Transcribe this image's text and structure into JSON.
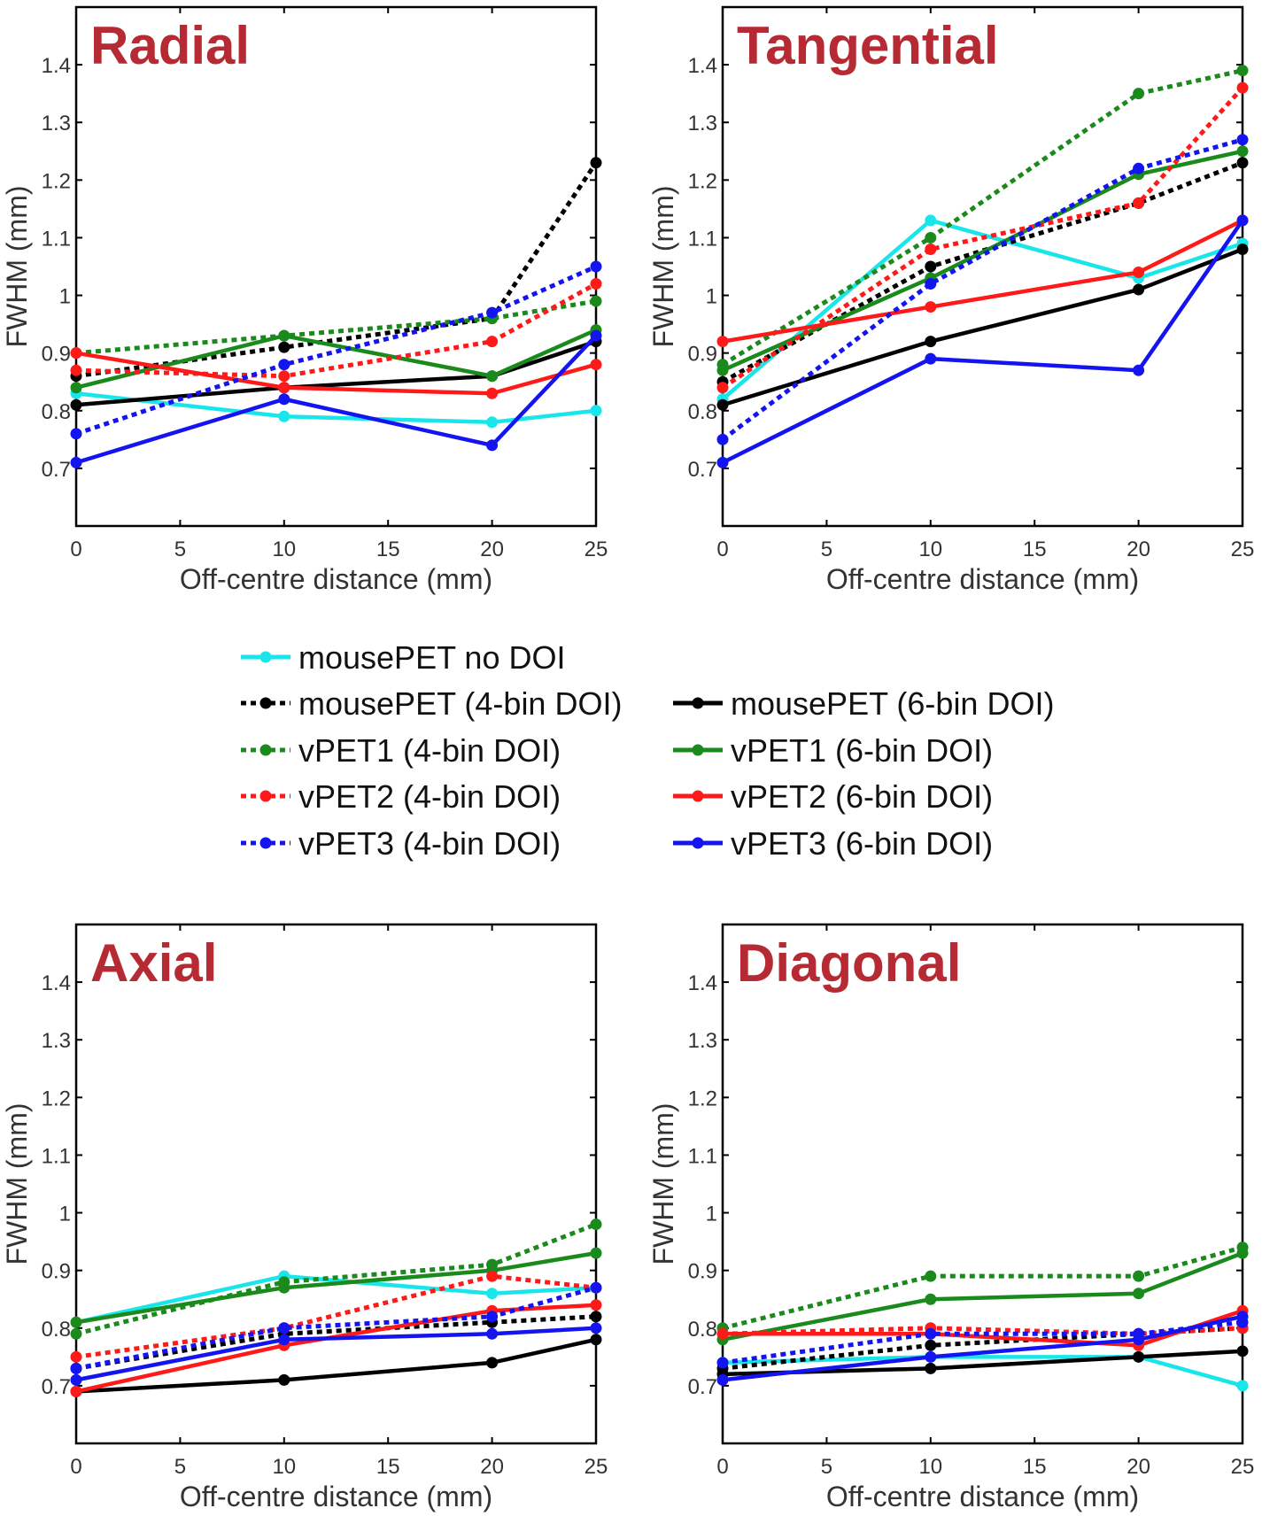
{
  "chart_data": [
    {
      "type": "line",
      "title": "Radial",
      "xlabel": "Off-centre distance (mm)",
      "ylabel": "FWHM (mm)",
      "x": [
        0,
        10,
        20,
        25
      ],
      "xticks": [
        "0",
        "5",
        "10",
        "15",
        "20",
        "25"
      ],
      "yticks": [
        "0.7",
        "0.8",
        "0.9",
        "1",
        "1.1",
        "1.2",
        "1.3",
        "1.4"
      ],
      "xlim": [
        0,
        25
      ],
      "ylim": [
        0.6,
        1.5
      ],
      "series": [
        {
          "name": "mousePET no DOI",
          "values": [
            0.83,
            0.79,
            0.78,
            0.8
          ]
        },
        {
          "name": "mousePET (4-bin DOI)",
          "values": [
            0.86,
            0.91,
            0.96,
            1.23
          ]
        },
        {
          "name": "mousePET (6-bin DOI)",
          "values": [
            0.81,
            0.84,
            0.86,
            0.92
          ]
        },
        {
          "name": "vPET1 (4-bin DOI)",
          "values": [
            0.9,
            0.93,
            0.96,
            0.99
          ]
        },
        {
          "name": "vPET1 (6-bin DOI)",
          "values": [
            0.84,
            0.93,
            0.86,
            0.94
          ]
        },
        {
          "name": "vPET2 (4-bin DOI)",
          "values": [
            0.87,
            0.86,
            0.92,
            1.02
          ]
        },
        {
          "name": "vPET2 (6-bin DOI)",
          "values": [
            0.9,
            0.84,
            0.83,
            0.88
          ]
        },
        {
          "name": "vPET3 (4-bin DOI)",
          "values": [
            0.76,
            0.88,
            0.97,
            1.05
          ]
        },
        {
          "name": "vPET3 (6-bin DOI)",
          "values": [
            0.71,
            0.82,
            0.74,
            0.93
          ]
        }
      ]
    },
    {
      "type": "line",
      "title": "Tangential",
      "xlabel": "Off-centre distance (mm)",
      "ylabel": "FWHM (mm)",
      "x": [
        0,
        10,
        20,
        25
      ],
      "xticks": [
        "0",
        "5",
        "10",
        "15",
        "20",
        "25"
      ],
      "yticks": [
        "0.7",
        "0.8",
        "0.9",
        "1",
        "1.1",
        "1.2",
        "1.3",
        "1.4"
      ],
      "xlim": [
        0,
        25
      ],
      "ylim": [
        0.6,
        1.5
      ],
      "series": [
        {
          "name": "mousePET no DOI",
          "values": [
            0.82,
            1.13,
            1.03,
            1.09
          ]
        },
        {
          "name": "mousePET (4-bin DOI)",
          "values": [
            0.85,
            1.05,
            1.16,
            1.23
          ]
        },
        {
          "name": "mousePET (6-bin DOI)",
          "values": [
            0.81,
            0.92,
            1.01,
            1.08
          ]
        },
        {
          "name": "vPET1 (4-bin DOI)",
          "values": [
            0.88,
            1.1,
            1.35,
            1.39
          ]
        },
        {
          "name": "vPET1 (6-bin DOI)",
          "values": [
            0.87,
            1.03,
            1.21,
            1.25
          ]
        },
        {
          "name": "vPET2 (4-bin DOI)",
          "values": [
            0.84,
            1.08,
            1.16,
            1.36
          ]
        },
        {
          "name": "vPET2 (6-bin DOI)",
          "values": [
            0.92,
            0.98,
            1.04,
            1.13
          ]
        },
        {
          "name": "vPET3 (4-bin DOI)",
          "values": [
            0.75,
            1.02,
            1.22,
            1.27
          ]
        },
        {
          "name": "vPET3 (6-bin DOI)",
          "values": [
            0.71,
            0.89,
            0.87,
            1.13
          ]
        }
      ]
    },
    {
      "type": "line",
      "title": "Axial",
      "xlabel": "Off-centre distance (mm)",
      "ylabel": "FWHM (mm)",
      "x": [
        0,
        10,
        20,
        25
      ],
      "xticks": [
        "0",
        "5",
        "10",
        "15",
        "20",
        "25"
      ],
      "yticks": [
        "0.7",
        "0.8",
        "0.9",
        "1",
        "1.1",
        "1.2",
        "1.3",
        "1.4"
      ],
      "xlim": [
        0,
        25
      ],
      "ylim": [
        0.6,
        1.5
      ],
      "series": [
        {
          "name": "mousePET no DOI",
          "values": [
            0.81,
            0.89,
            0.86,
            0.87
          ]
        },
        {
          "name": "mousePET (4-bin DOI)",
          "values": [
            0.73,
            0.79,
            0.81,
            0.82
          ]
        },
        {
          "name": "mousePET (6-bin DOI)",
          "values": [
            0.69,
            0.71,
            0.74,
            0.78
          ]
        },
        {
          "name": "vPET1 (4-bin DOI)",
          "values": [
            0.79,
            0.88,
            0.91,
            0.98
          ]
        },
        {
          "name": "vPET1 (6-bin DOI)",
          "values": [
            0.81,
            0.87,
            0.9,
            0.93
          ]
        },
        {
          "name": "vPET2 (4-bin DOI)",
          "values": [
            0.75,
            0.8,
            0.89,
            0.87
          ]
        },
        {
          "name": "vPET2 (6-bin DOI)",
          "values": [
            0.69,
            0.77,
            0.83,
            0.84
          ]
        },
        {
          "name": "vPET3 (4-bin DOI)",
          "values": [
            0.73,
            0.8,
            0.82,
            0.87
          ]
        },
        {
          "name": "vPET3 (6-bin DOI)",
          "values": [
            0.71,
            0.78,
            0.79,
            0.8
          ]
        }
      ]
    },
    {
      "type": "line",
      "title": "Diagonal",
      "xlabel": "Off-centre distance (mm)",
      "ylabel": "FWHM (mm)",
      "x": [
        0,
        10,
        20,
        25
      ],
      "xticks": [
        "0",
        "5",
        "10",
        "15",
        "20",
        "25"
      ],
      "yticks": [
        "0.7",
        "0.8",
        "0.9",
        "1",
        "1.1",
        "1.2",
        "1.3",
        "1.4"
      ],
      "xlim": [
        0,
        25
      ],
      "ylim": [
        0.6,
        1.5
      ],
      "series": [
        {
          "name": "mousePET no DOI",
          "values": [
            0.74,
            0.75,
            0.75,
            0.7
          ]
        },
        {
          "name": "mousePET (4-bin DOI)",
          "values": [
            0.73,
            0.77,
            0.79,
            0.8
          ]
        },
        {
          "name": "mousePET (6-bin DOI)",
          "values": [
            0.72,
            0.73,
            0.75,
            0.76
          ]
        },
        {
          "name": "vPET1 (4-bin DOI)",
          "values": [
            0.8,
            0.89,
            0.89,
            0.94
          ]
        },
        {
          "name": "vPET1 (6-bin DOI)",
          "values": [
            0.78,
            0.85,
            0.86,
            0.93
          ]
        },
        {
          "name": "vPET2 (4-bin DOI)",
          "values": [
            0.79,
            0.8,
            0.79,
            0.8
          ]
        },
        {
          "name": "vPET2 (6-bin DOI)",
          "values": [
            0.79,
            0.79,
            0.77,
            0.83
          ]
        },
        {
          "name": "vPET3 (4-bin DOI)",
          "values": [
            0.74,
            0.79,
            0.79,
            0.81
          ]
        },
        {
          "name": "vPET3 (6-bin DOI)",
          "values": [
            0.71,
            0.75,
            0.78,
            0.82
          ]
        }
      ]
    }
  ],
  "legend": {
    "entries": [
      {
        "key": "mousePET no DOI",
        "label": "mousePET no DOI",
        "color": "#19e6ea",
        "style": "solid"
      },
      {
        "key": "mousePET (4-bin DOI)",
        "label": "mousePET (4-bin DOI)",
        "color": "#000000",
        "style": "dotted"
      },
      {
        "key": "mousePET (6-bin DOI)",
        "label": "mousePET (6-bin DOI)",
        "color": "#000000",
        "style": "solid"
      },
      {
        "key": "vPET1 (4-bin DOI)",
        "label": "vPET1 (4-bin DOI)",
        "color": "#1a8a1c",
        "style": "dotted"
      },
      {
        "key": "vPET1 (6-bin DOI)",
        "label": "vPET1 (6-bin DOI)",
        "color": "#1a8a1c",
        "style": "solid"
      },
      {
        "key": "vPET2 (4-bin DOI)",
        "label": "vPET2 (4-bin DOI)",
        "color": "#ff1a1a",
        "style": "dotted"
      },
      {
        "key": "vPET2 (6-bin DOI)",
        "label": "vPET2 (6-bin DOI)",
        "color": "#ff1a1a",
        "style": "solid"
      },
      {
        "key": "vPET3 (4-bin DOI)",
        "label": "vPET3 (4-bin DOI)",
        "color": "#1414f0",
        "style": "dotted"
      },
      {
        "key": "vPET3 (6-bin DOI)",
        "label": "vPET3 (6-bin DOI)",
        "color": "#1414f0",
        "style": "solid"
      }
    ]
  }
}
